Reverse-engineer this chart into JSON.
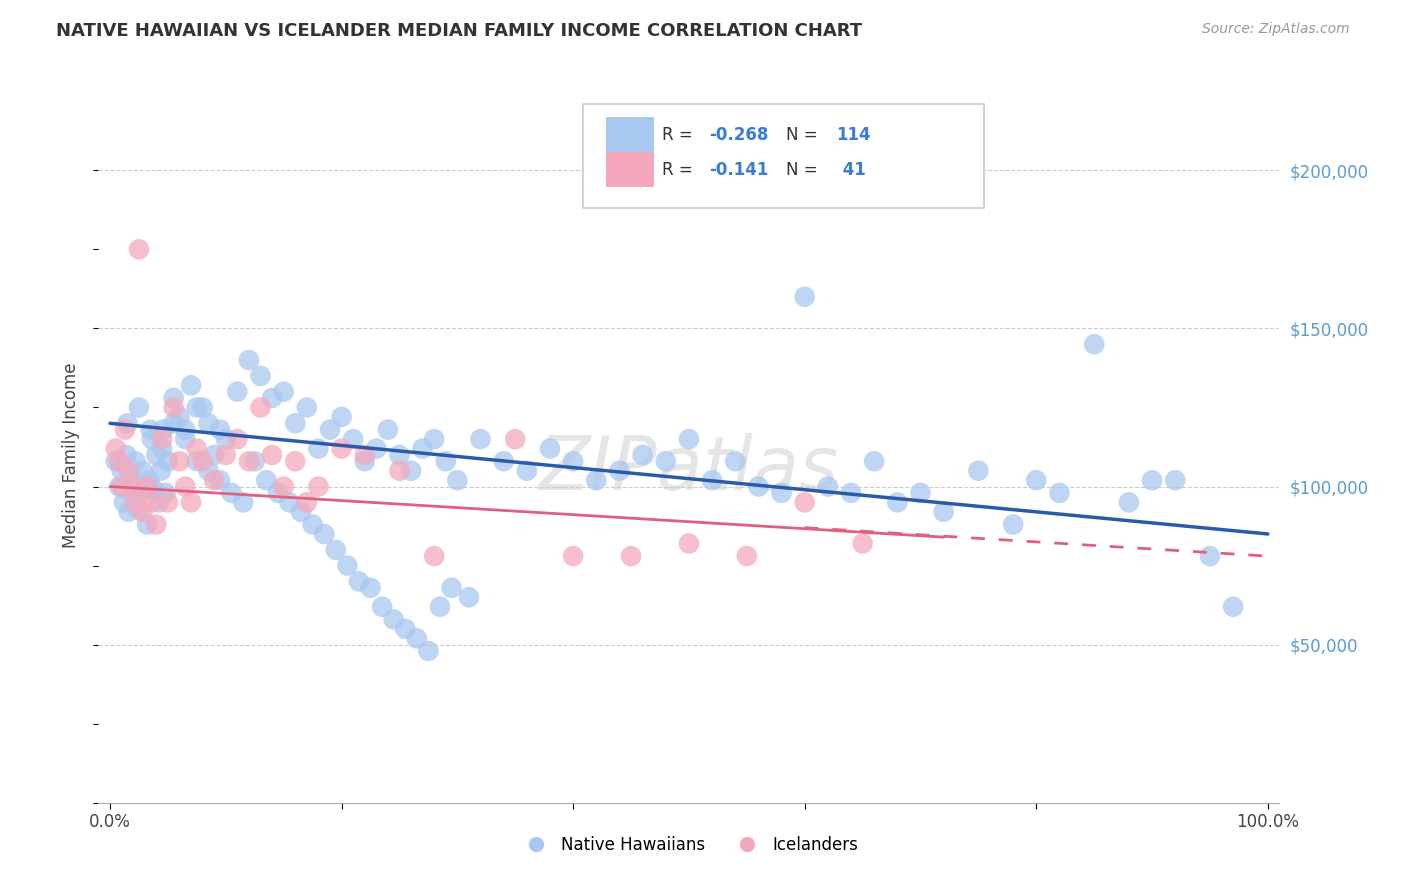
{
  "title": "NATIVE HAWAIIAN VS ICELANDER MEDIAN FAMILY INCOME CORRELATION CHART",
  "source": "Source: ZipAtlas.com",
  "ylabel": "Median Family Income",
  "watermark": "ZIPatlas",
  "xlim": [
    -0.01,
    1.01
  ],
  "ylim": [
    0,
    220000
  ],
  "blue_color": "#A8C8F0",
  "pink_color": "#F5A8BC",
  "trend_blue": "#2B5BA8",
  "trend_pink": "#E06080",
  "background": "#FFFFFF",
  "grid_color": "#CCCCCC",
  "native_hawaiian_x": [
    0.005,
    0.008,
    0.01,
    0.012,
    0.014,
    0.016,
    0.018,
    0.02,
    0.022,
    0.024,
    0.026,
    0.028,
    0.03,
    0.032,
    0.034,
    0.036,
    0.038,
    0.04,
    0.042,
    0.044,
    0.046,
    0.048,
    0.05,
    0.055,
    0.06,
    0.065,
    0.07,
    0.075,
    0.08,
    0.085,
    0.09,
    0.095,
    0.1,
    0.11,
    0.12,
    0.13,
    0.14,
    0.15,
    0.16,
    0.17,
    0.18,
    0.19,
    0.2,
    0.21,
    0.22,
    0.23,
    0.24,
    0.25,
    0.26,
    0.27,
    0.28,
    0.29,
    0.3,
    0.32,
    0.34,
    0.36,
    0.38,
    0.4,
    0.42,
    0.44,
    0.46,
    0.48,
    0.5,
    0.52,
    0.54,
    0.56,
    0.58,
    0.6,
    0.62,
    0.64,
    0.66,
    0.68,
    0.7,
    0.72,
    0.75,
    0.78,
    0.8,
    0.82,
    0.85,
    0.88,
    0.9,
    0.92,
    0.95,
    0.97,
    0.015,
    0.025,
    0.035,
    0.045,
    0.055,
    0.065,
    0.075,
    0.085,
    0.095,
    0.105,
    0.115,
    0.125,
    0.135,
    0.145,
    0.155,
    0.165,
    0.175,
    0.185,
    0.195,
    0.205,
    0.215,
    0.225,
    0.235,
    0.245,
    0.255,
    0.265,
    0.275,
    0.285,
    0.295,
    0.31
  ],
  "native_hawaiian_y": [
    108000,
    100000,
    105000,
    95000,
    110000,
    92000,
    103000,
    97000,
    108000,
    93000,
    98000,
    105000,
    100000,
    88000,
    102000,
    115000,
    99000,
    110000,
    95000,
    105000,
    118000,
    98000,
    108000,
    128000,
    122000,
    118000,
    132000,
    125000,
    125000,
    120000,
    110000,
    118000,
    115000,
    130000,
    140000,
    135000,
    128000,
    130000,
    120000,
    125000,
    112000,
    118000,
    122000,
    115000,
    108000,
    112000,
    118000,
    110000,
    105000,
    112000,
    115000,
    108000,
    102000,
    115000,
    108000,
    105000,
    112000,
    108000,
    102000,
    105000,
    110000,
    108000,
    115000,
    102000,
    108000,
    100000,
    98000,
    160000,
    100000,
    98000,
    108000,
    95000,
    98000,
    92000,
    105000,
    88000,
    102000,
    98000,
    145000,
    95000,
    102000,
    102000,
    78000,
    62000,
    120000,
    125000,
    118000,
    112000,
    120000,
    115000,
    108000,
    105000,
    102000,
    98000,
    95000,
    108000,
    102000,
    98000,
    95000,
    92000,
    88000,
    85000,
    80000,
    75000,
    70000,
    68000,
    62000,
    58000,
    55000,
    52000,
    48000,
    62000,
    68000,
    65000
  ],
  "icelander_x": [
    0.005,
    0.008,
    0.01,
    0.013,
    0.016,
    0.019,
    0.022,
    0.025,
    0.028,
    0.032,
    0.036,
    0.04,
    0.045,
    0.05,
    0.055,
    0.06,
    0.065,
    0.07,
    0.075,
    0.08,
    0.09,
    0.1,
    0.11,
    0.12,
    0.13,
    0.14,
    0.15,
    0.16,
    0.17,
    0.18,
    0.2,
    0.22,
    0.25,
    0.28,
    0.35,
    0.4,
    0.45,
    0.5,
    0.55,
    0.6,
    0.65
  ],
  "icelander_y": [
    112000,
    108000,
    100000,
    118000,
    105000,
    100000,
    95000,
    175000,
    92000,
    100000,
    95000,
    88000,
    115000,
    95000,
    125000,
    108000,
    100000,
    95000,
    112000,
    108000,
    102000,
    110000,
    115000,
    108000,
    125000,
    110000,
    100000,
    108000,
    95000,
    100000,
    112000,
    110000,
    105000,
    78000,
    115000,
    78000,
    78000,
    82000,
    78000,
    95000,
    82000
  ],
  "trend_blue_x0": 0.0,
  "trend_blue_x1": 1.0,
  "trend_blue_y0": 120000,
  "trend_blue_y1": 85000,
  "trend_pink_x0": 0.0,
  "trend_pink_x1": 0.72,
  "trend_pink_y0": 100000,
  "trend_pink_y1": 84000,
  "trend_pink_dash_x0": 0.6,
  "trend_pink_dash_x1": 1.0,
  "trend_pink_dash_y0": 87000,
  "trend_pink_dash_y1": 78000
}
